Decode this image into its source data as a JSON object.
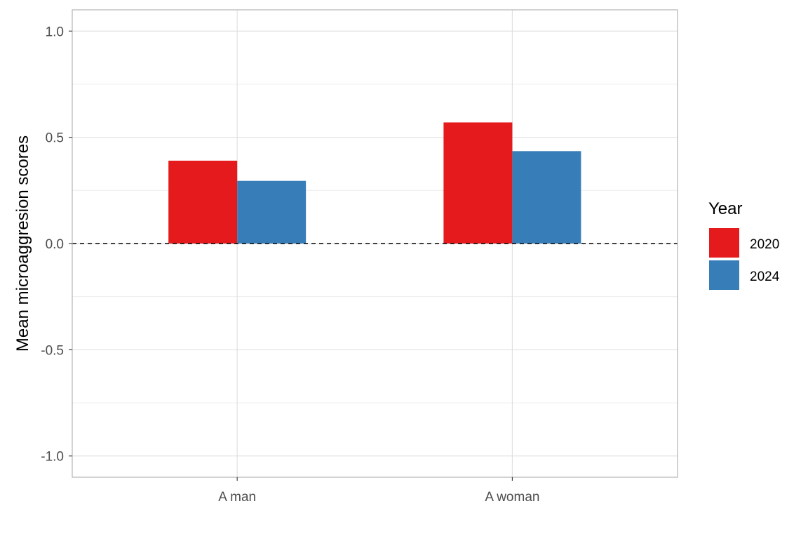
{
  "chart_data": {
    "type": "bar",
    "categories": [
      "A man",
      "A woman"
    ],
    "series": [
      {
        "name": "2020",
        "color": "#E41A1C",
        "values": [
          0.39,
          0.57
        ]
      },
      {
        "name": "2024",
        "color": "#377EB8",
        "values": [
          0.295,
          0.435
        ]
      }
    ],
    "ylabel": "Mean microaggresion scores",
    "xlabel": "",
    "ylim": [
      -1.1,
      1.1
    ],
    "yticks": [
      -1.0,
      -0.5,
      0.0,
      0.5,
      1.0
    ],
    "ytick_labels": [
      "-1.0",
      "-0.5",
      "0.0",
      "0.5",
      "1.0"
    ],
    "reference_line": {
      "y": 0,
      "style": "dashed"
    },
    "legend": {
      "title": "Year",
      "placement": "right"
    },
    "grid": true
  }
}
